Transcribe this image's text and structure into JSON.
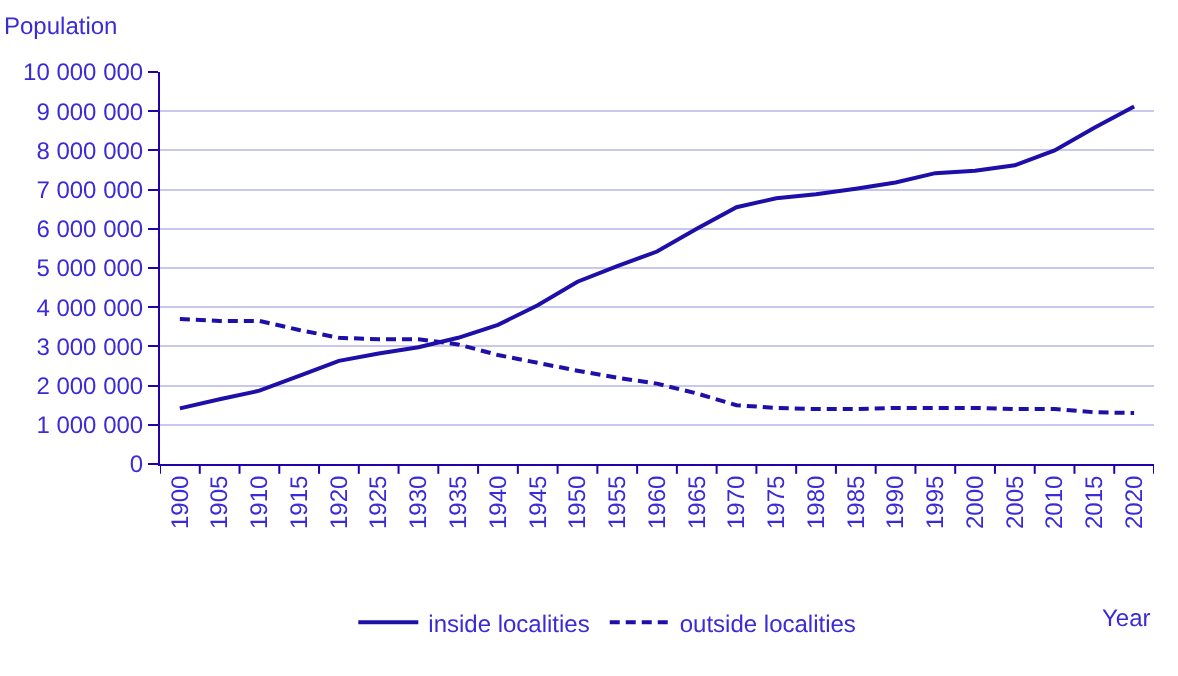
{
  "chart_data": {
    "type": "line",
    "xlabel": "Year",
    "ylabel": "Population",
    "categories": [
      "1900",
      "1905",
      "1910",
      "1915",
      "1920",
      "1925",
      "1930",
      "1935",
      "1940",
      "1945",
      "1950",
      "1955",
      "1960",
      "1965",
      "1970",
      "1975",
      "1980",
      "1985",
      "1990",
      "1995",
      "2000",
      "2005",
      "2010",
      "2015",
      "2020"
    ],
    "series": [
      {
        "name": "inside localities",
        "color": "#1e0fa8",
        "line_style": "solid",
        "values": [
          1420000,
          1650000,
          1870000,
          2250000,
          2630000,
          2820000,
          2980000,
          3220000,
          3550000,
          4050000,
          4650000,
          5050000,
          5420000,
          6000000,
          6550000,
          6780000,
          6880000,
          7020000,
          7180000,
          7420000,
          7480000,
          7620000,
          8000000,
          8580000,
          9120000
        ]
      },
      {
        "name": "outside localities",
        "color": "#1e0fa8",
        "line_style": "dashed",
        "values": [
          3700000,
          3650000,
          3650000,
          3420000,
          3220000,
          3180000,
          3180000,
          3050000,
          2780000,
          2580000,
          2380000,
          2200000,
          2050000,
          1800000,
          1500000,
          1430000,
          1400000,
          1400000,
          1430000,
          1430000,
          1430000,
          1400000,
          1400000,
          1320000,
          1300000
        ]
      }
    ],
    "ylim": [
      0,
      10000000
    ],
    "yticks": [
      {
        "value": 0,
        "label": "0"
      },
      {
        "value": 1000000,
        "label": "1 000 000"
      },
      {
        "value": 2000000,
        "label": "2 000 000"
      },
      {
        "value": 3000000,
        "label": "3 000 000"
      },
      {
        "value": 4000000,
        "label": "4 000 000"
      },
      {
        "value": 5000000,
        "label": "5 000 000"
      },
      {
        "value": 6000000,
        "label": "6 000 000"
      },
      {
        "value": 7000000,
        "label": "7 000 000"
      },
      {
        "value": 8000000,
        "label": "8 000 000"
      },
      {
        "value": 9000000,
        "label": "9 000 000"
      },
      {
        "value": 10000000,
        "label": "10 000 000"
      }
    ],
    "grid": "y",
    "legend": "bottom",
    "marker": "none"
  }
}
